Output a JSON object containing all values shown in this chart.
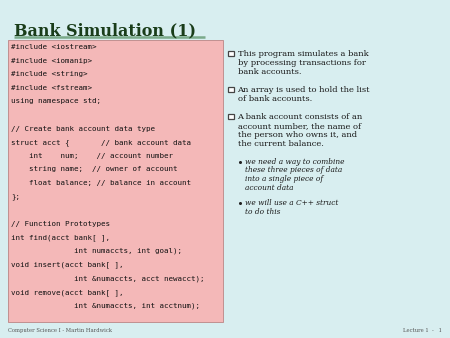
{
  "title": "Bank Simulation (1)",
  "title_color": "#1a3d1a",
  "slide_bg": "#d8eef0",
  "code_bg": "#f4b8b8",
  "code_border": "#c09090",
  "code_text_color": "#111111",
  "footer_left": "Computer Science I - Martin Hardwick",
  "footer_right": "Lecture 1  -   1",
  "underline_color": "#7aaa8a",
  "code_lines": [
    "#include <iostream>",
    "#include <iomanip>",
    "#include <string>",
    "#include <fstream>",
    "using namespace std;",
    "",
    "// Create bank account data type",
    "struct acct {       // bank account data",
    "    int    num;    // account number",
    "    string name;  // owner of account",
    "    float balance; // balance in account",
    "};",
    "",
    "// Function Prototypes",
    "int find(acct bank[ ],",
    "              int numaccts, int goal);",
    "void insert(acct bank[ ],",
    "              int &numaccts, acct newacct);",
    "void remove(acct bank[ ],",
    "              int &numaccts, int acctnum);"
  ],
  "sq_bullets": [
    "This program simulates a bank\nby processing transactions for\nbank accounts.",
    "An array is used to hold the list\nof bank accounts.",
    "A bank account consists of an\naccount number, the name of\nthe person who owns it, and\nthe current balance."
  ],
  "sub_bullets": [
    "we need a way to combine\nthese three pieces of data\ninto a single piece of\naccount data",
    "we will use a C++ struct\nto do this"
  ]
}
